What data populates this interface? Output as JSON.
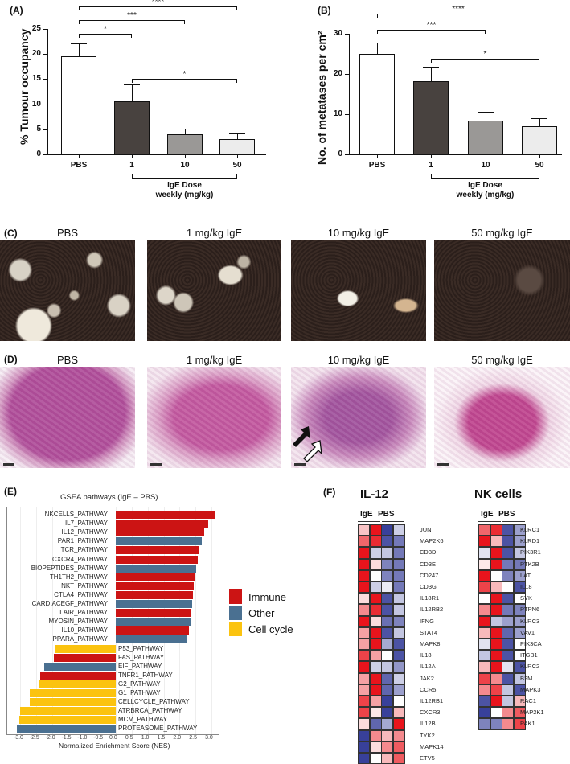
{
  "panels": {
    "A": "(A)",
    "B": "(B)",
    "C": "(C)",
    "D": "(D)",
    "E": "(E)",
    "F": "(F)"
  },
  "chart_data": [
    {
      "id": "A",
      "type": "bar",
      "title": "",
      "ylabel": "% Tumour occupancy",
      "xlabel": "IgE Dose weekly (mg/kg)",
      "categories": [
        "PBS",
        "1",
        "10",
        "50"
      ],
      "values": [
        19.5,
        10.5,
        4.0,
        3.1
      ],
      "errors": [
        2.6,
        3.4,
        1.2,
        1.1
      ],
      "bar_colors": [
        "#ffffff",
        "#48423f",
        "#9a9896",
        "#ececec"
      ],
      "ylim": [
        0,
        25
      ],
      "yticks": [
        "0",
        "5",
        "10",
        "15",
        "20",
        "25"
      ],
      "significance": [
        {
          "from": "PBS",
          "to": "1",
          "label": "*"
        },
        {
          "from": "PBS",
          "to": "10",
          "label": "***"
        },
        {
          "from": "PBS",
          "to": "50",
          "label": "****"
        },
        {
          "from": "1",
          "to": "50",
          "label": "*"
        }
      ],
      "dose_label_line1": "IgE Dose",
      "dose_label_line2": "weekly (mg/kg)"
    },
    {
      "id": "B",
      "type": "bar",
      "title": "",
      "ylabel": "No. of metatases per cm²",
      "xlabel": "IgE Dose weekly (mg/kg)",
      "categories": [
        "PBS",
        "1",
        "10",
        "50"
      ],
      "values": [
        25.0,
        18.3,
        8.5,
        7.1
      ],
      "errors": [
        2.9,
        3.6,
        2.2,
        2.0
      ],
      "bar_colors": [
        "#ffffff",
        "#48423f",
        "#9a9896",
        "#ececec"
      ],
      "ylim": [
        0,
        30
      ],
      "yticks": [
        "0",
        "10",
        "20",
        "30"
      ],
      "significance": [
        {
          "from": "PBS",
          "to": "10",
          "label": "***"
        },
        {
          "from": "PBS",
          "to": "50",
          "label": "****"
        },
        {
          "from": "1",
          "to": "50",
          "label": "*"
        }
      ],
      "dose_label_line1": "IgE Dose",
      "dose_label_line2": "weekly (mg/kg)"
    },
    {
      "id": "E",
      "type": "bar",
      "orientation": "horizontal",
      "title": "GSEA pathways (IgE    – PBS)",
      "xlabel": "Normalized Enrichment Score (NES)",
      "xlim": [
        -3.2,
        3.3
      ],
      "xticks": [
        "-3.0",
        "-2.5",
        "-2.0",
        "-1.5",
        "-1.0",
        "-0.5",
        "0.0",
        "0.5",
        "1.0",
        "1.5",
        "2.0",
        "2.5",
        "3.0"
      ],
      "legend": [
        {
          "label": "Immune",
          "color": "#cc1414"
        },
        {
          "label": "Other",
          "color": "#4a7091"
        },
        {
          "label": "Cell cycle",
          "color": "#fbc30f"
        }
      ],
      "bars": [
        {
          "label": "NKCELLS_PATHWAY",
          "value": 3.1,
          "group": "Immune"
        },
        {
          "label": "IL7_PATHWAY",
          "value": 2.9,
          "group": "Immune"
        },
        {
          "label": "IL12_PATHWAY",
          "value": 2.77,
          "group": "Immune"
        },
        {
          "label": "PAR1_PATHWAY",
          "value": 2.7,
          "group": "Other"
        },
        {
          "label": "TCR_PATHWAY",
          "value": 2.6,
          "group": "Immune"
        },
        {
          "label": "CXCR4_PATHWAY",
          "value": 2.57,
          "group": "Immune"
        },
        {
          "label": "BIOPEPTIDES_PATHWAY",
          "value": 2.52,
          "group": "Other"
        },
        {
          "label": "TH1TH2_PATHWAY",
          "value": 2.5,
          "group": "Immune"
        },
        {
          "label": "NKT_PATHWAY",
          "value": 2.44,
          "group": "Immune"
        },
        {
          "label": "CTLA4_PATHWAY",
          "value": 2.42,
          "group": "Immune"
        },
        {
          "label": "CARDIACEGF_PATHWAY",
          "value": 2.4,
          "group": "Other"
        },
        {
          "label": "LAIR_PATHWAY",
          "value": 2.38,
          "group": "Immune"
        },
        {
          "label": "MYOSIN_PATHWAY",
          "value": 2.37,
          "group": "Other"
        },
        {
          "label": "IL10_PATHWAY",
          "value": 2.3,
          "group": "Immune"
        },
        {
          "label": "PPARA_PATHWAY",
          "value": 2.25,
          "group": "Other"
        },
        {
          "label": "P53_PATHWAY",
          "value": -1.9,
          "group": "Cell cycle"
        },
        {
          "label": "FAS_PATHWAY",
          "value": -1.95,
          "group": "Immune"
        },
        {
          "label": "EIF_PATHWAY",
          "value": -2.25,
          "group": "Other"
        },
        {
          "label": "TNFR1_PATHWAY",
          "value": -2.37,
          "group": "Immune"
        },
        {
          "label": "G2_PATHWAY",
          "value": -2.43,
          "group": "Cell cycle"
        },
        {
          "label": "G1_PATHWAY",
          "value": -2.7,
          "group": "Cell cycle"
        },
        {
          "label": "CELLCYCLE_PATHWAY",
          "value": -2.7,
          "group": "Cell cycle"
        },
        {
          "label": "ATRBRCA_PATHWAY",
          "value": -3.0,
          "group": "Cell cycle"
        },
        {
          "label": "MCM_PATHWAY",
          "value": -3.02,
          "group": "Cell cycle"
        },
        {
          "label": "PROTEASOME_PATHWAY",
          "value": -3.1,
          "group": "Other"
        }
      ]
    },
    {
      "id": "F-IL12",
      "type": "heatmap",
      "title": "IL-12",
      "columns": [
        "IgE",
        "IgE",
        "PBS",
        "PBS"
      ],
      "group_labels": [
        "IgE",
        "PBS"
      ],
      "scale": "values from -2 (blue) to +2 (red)",
      "rows": [
        {
          "gene": "JUN",
          "values": [
            0.5,
            2,
            -2,
            -0.5
          ]
        },
        {
          "gene": "MAP2K6",
          "values": [
            1.3,
            1.8,
            -1.8,
            -1.4
          ]
        },
        {
          "gene": "CD3D",
          "values": [
            2,
            -0.5,
            -0.6,
            -1.4
          ]
        },
        {
          "gene": "CD3E",
          "values": [
            2,
            0.3,
            -1.3,
            -1.4
          ]
        },
        {
          "gene": "CD247",
          "values": [
            2,
            0,
            -1.3,
            -1.4
          ]
        },
        {
          "gene": "CD3G",
          "values": [
            2,
            -0.5,
            -0.2,
            -1.4
          ]
        },
        {
          "gene": "IL18R1",
          "values": [
            0.3,
            2,
            -1.8,
            -0.6
          ]
        },
        {
          "gene": "IL12RB2",
          "values": [
            1,
            1.8,
            -1.8,
            -0.6
          ]
        },
        {
          "gene": "IFNG",
          "values": [
            2,
            0.3,
            -1.5,
            -1.3
          ]
        },
        {
          "gene": "STAT4",
          "values": [
            0.8,
            2,
            -1.8,
            -0.6
          ]
        },
        {
          "gene": "MAPK8",
          "values": [
            0.8,
            2,
            -0.9,
            -1.8
          ]
        },
        {
          "gene": "IL18",
          "values": [
            1.6,
            0.8,
            0,
            -1.8
          ]
        },
        {
          "gene": "IL12A",
          "values": [
            2,
            -0.5,
            -0.6,
            -1.1
          ]
        },
        {
          "gene": "JAK2",
          "values": [
            0.8,
            2,
            -1.6,
            -0.5
          ]
        },
        {
          "gene": "CCR5",
          "values": [
            0.8,
            2,
            -1.6,
            -1
          ]
        },
        {
          "gene": "IL12RB1",
          "values": [
            1.6,
            0.8,
            -2,
            0
          ]
        },
        {
          "gene": "CXCR3",
          "values": [
            1.6,
            0.2,
            -2,
            0.6
          ]
        },
        {
          "gene": "IL12B",
          "values": [
            0.3,
            -1.6,
            -0.9,
            2
          ]
        },
        {
          "gene": "TYK2",
          "values": [
            -2,
            1,
            0.6,
            1
          ]
        },
        {
          "gene": "MAPK14",
          "values": [
            -2,
            0.3,
            1,
            1.4
          ]
        },
        {
          "gene": "ETV5",
          "values": [
            -2,
            0,
            0.6,
            1.4
          ]
        }
      ]
    },
    {
      "id": "F-NK",
      "type": "heatmap",
      "title": "NK cells",
      "columns": [
        "IgE",
        "IgE",
        "PBS",
        "PBS"
      ],
      "group_labels": [
        "IgE",
        "PBS"
      ],
      "scale": "values from -2 (blue) to +2 (red)",
      "rows": [
        {
          "gene": "KLRC1",
          "values": [
            1.3,
            1.8,
            -1.8,
            -1
          ]
        },
        {
          "gene": "KLRD1",
          "values": [
            2,
            0.6,
            -1.8,
            -1
          ]
        },
        {
          "gene": "PIK3R1",
          "values": [
            -0.3,
            2,
            -1.8,
            -0.6
          ]
        },
        {
          "gene": "PTK2B",
          "values": [
            0.2,
            2,
            -1.4,
            -1.4
          ]
        },
        {
          "gene": "LAT",
          "values": [
            2,
            0,
            -1.3,
            -1
          ]
        },
        {
          "gene": "IL18",
          "values": [
            1.6,
            0.6,
            0,
            -1.8
          ]
        },
        {
          "gene": "SYK",
          "values": [
            0,
            2,
            -1.8,
            0
          ]
        },
        {
          "gene": "PTPN6",
          "values": [
            1,
            2,
            -1.4,
            -1.3
          ]
        },
        {
          "gene": "KLRC3",
          "values": [
            2,
            -0.6,
            -1,
            -1
          ]
        },
        {
          "gene": "VAV1",
          "values": [
            0.6,
            2,
            -1.6,
            -1
          ]
        },
        {
          "gene": "PIK3CA",
          "values": [
            -0.3,
            2,
            -1.8,
            0
          ]
        },
        {
          "gene": "ITGB1",
          "values": [
            -0.6,
            2,
            -1.8,
            0
          ]
        },
        {
          "gene": "KLRC2",
          "values": [
            0.6,
            2,
            -0.3,
            -1.8
          ]
        },
        {
          "gene": "B2M",
          "values": [
            1.6,
            1,
            -1.8,
            -0.6
          ]
        },
        {
          "gene": "MAPK3",
          "values": [
            1,
            1.6,
            -0.6,
            -1.8
          ]
        },
        {
          "gene": "RAC1",
          "values": [
            -1.8,
            2,
            -0.6,
            0.6
          ]
        },
        {
          "gene": "MAP2K1",
          "values": [
            -2,
            0,
            1,
            1.4
          ]
        },
        {
          "gene": "PAK1",
          "values": [
            -1.3,
            -1.3,
            1,
            1.6
          ]
        }
      ]
    }
  ],
  "images": {
    "C": [
      {
        "title": "PBS"
      },
      {
        "title": "1 mg/kg IgE"
      },
      {
        "title": "10 mg/kg IgE"
      },
      {
        "title": "50 mg/kg IgE"
      }
    ],
    "D": [
      {
        "title": "PBS"
      },
      {
        "title": "1 mg/kg IgE"
      },
      {
        "title": "10 mg/kg IgE"
      },
      {
        "title": "50 mg/kg IgE"
      }
    ]
  },
  "colors": {
    "immune": "#cc1414",
    "other": "#4a7091",
    "cellcycle": "#fbc30f",
    "heat_red": "#e8141c",
    "heat_blue": "#38409a"
  }
}
